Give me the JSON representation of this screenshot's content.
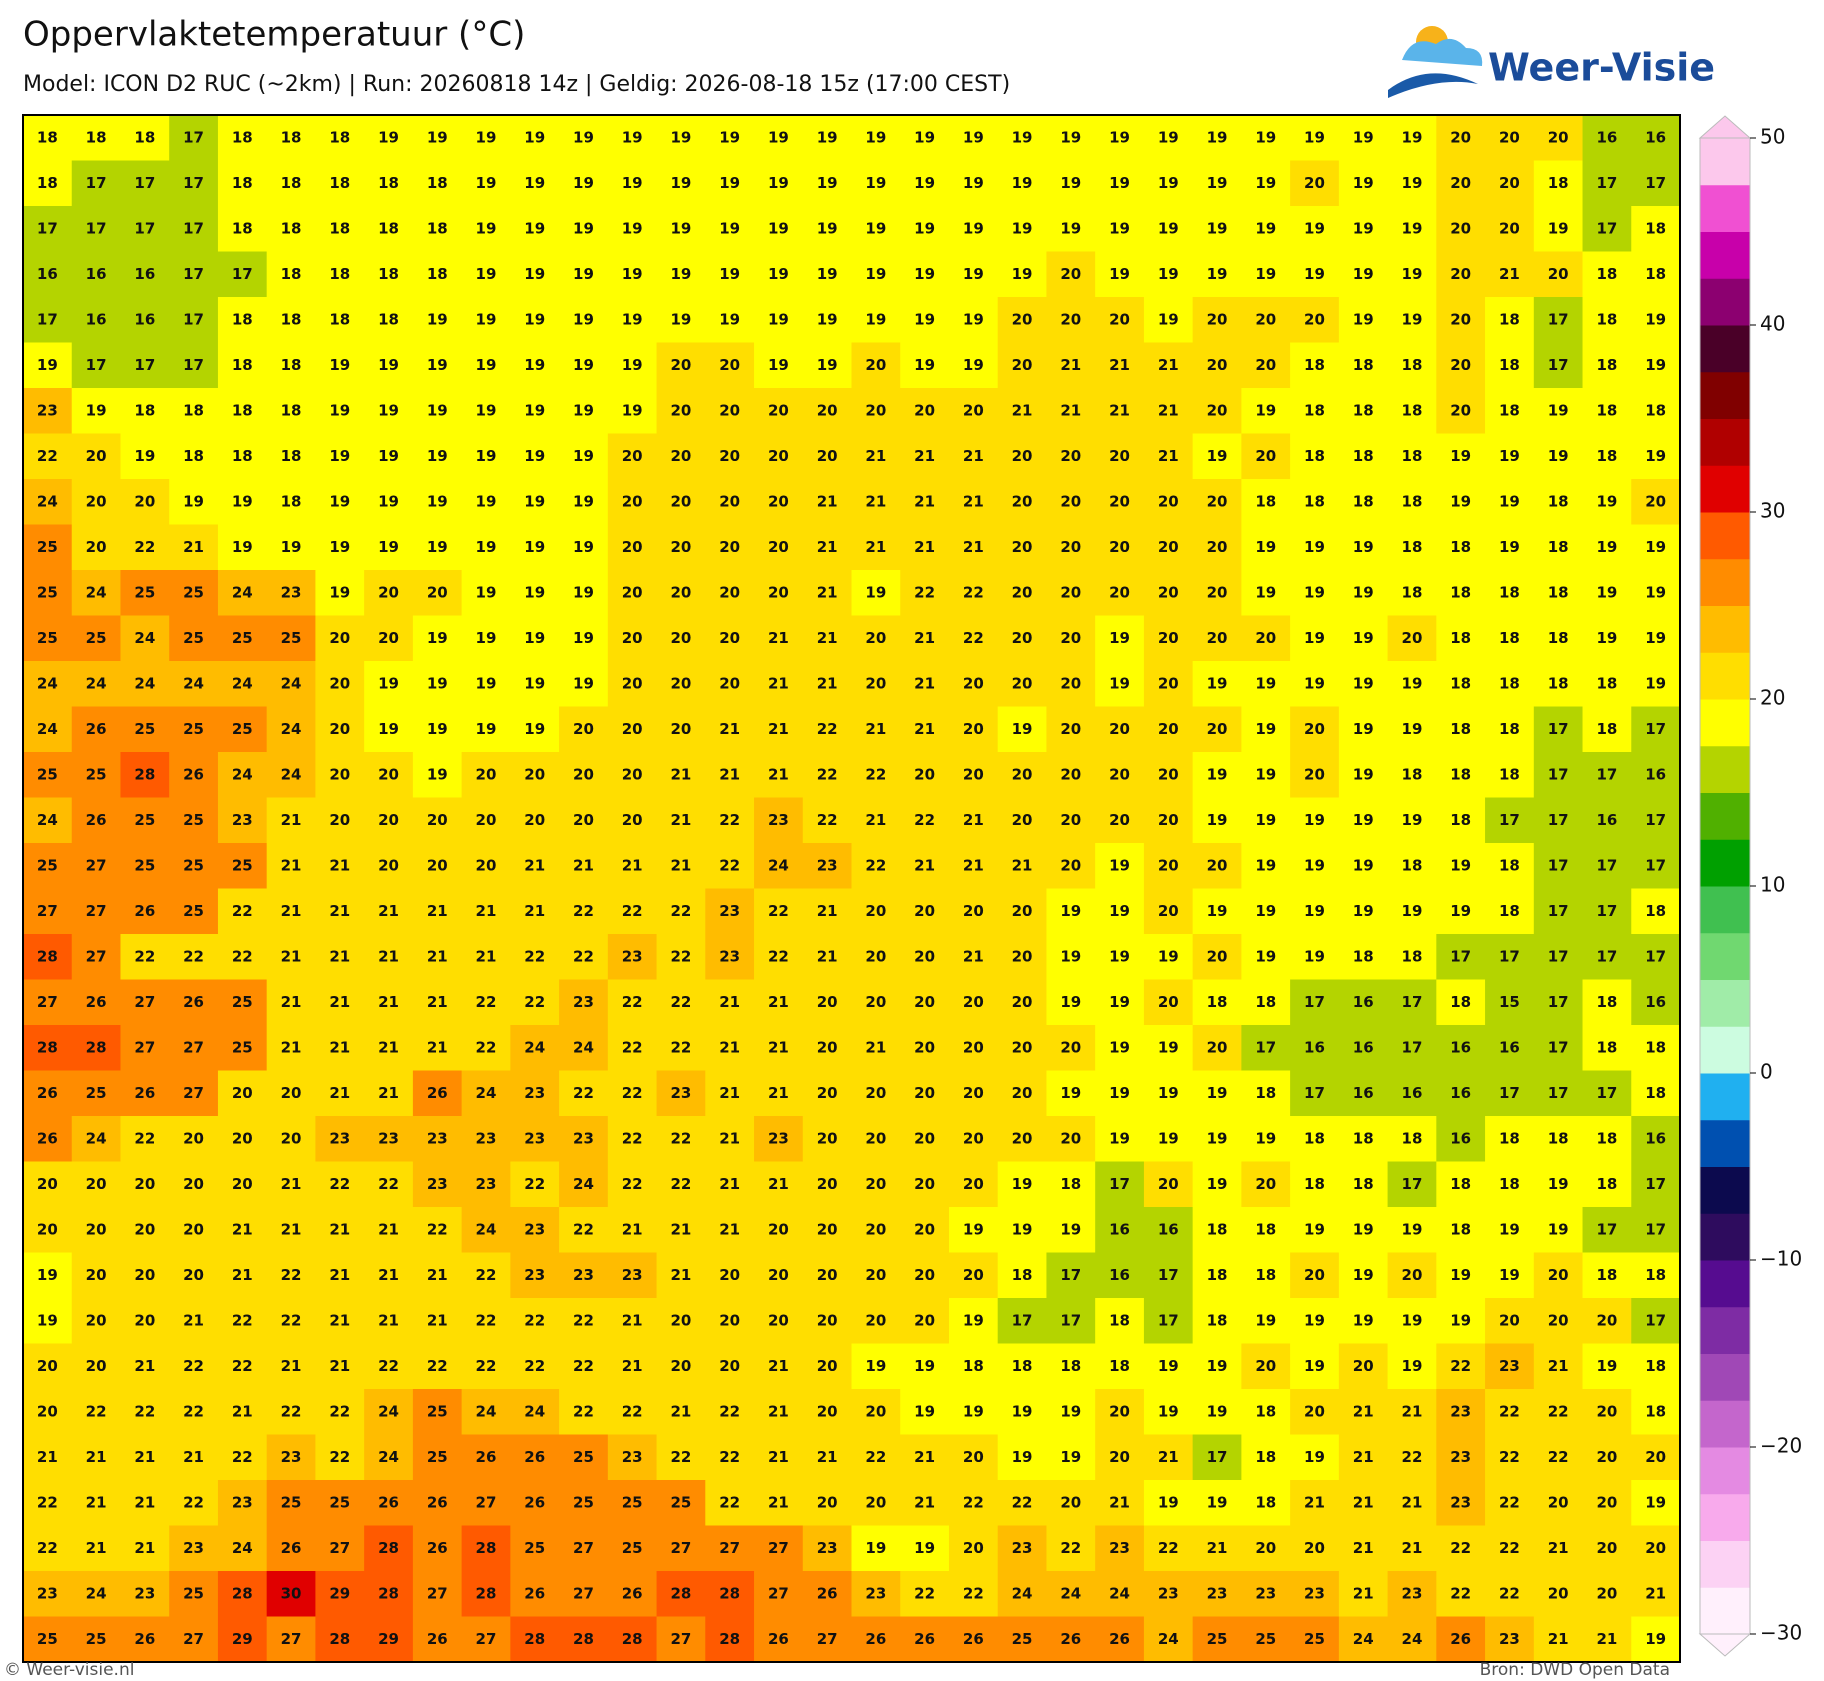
{
  "header": {
    "title": "Oppervlaktetemperatuur (°C)",
    "subtitle": "Model: ICON D2 RUC (~2km)  |  Run: 20260818 14z  |  Geldig: 2026-08-18 15z (17:00 CEST)"
  },
  "logo": {
    "text": "Weer-Visie"
  },
  "grid": {
    "rows": [
      [
        18,
        18,
        18,
        17,
        18,
        18,
        18,
        19,
        19,
        19,
        19,
        19,
        19,
        19,
        19,
        19,
        19,
        19,
        19,
        19,
        19,
        19,
        19,
        19,
        19,
        19,
        19,
        19,
        19,
        20,
        20,
        20,
        16,
        16
      ],
      [
        18,
        17,
        17,
        17,
        18,
        18,
        18,
        18,
        18,
        19,
        19,
        19,
        19,
        19,
        19,
        19,
        19,
        19,
        19,
        19,
        19,
        19,
        19,
        19,
        19,
        19,
        20,
        19,
        19,
        20,
        20,
        18,
        17,
        17
      ],
      [
        17,
        17,
        17,
        17,
        18,
        18,
        18,
        18,
        18,
        19,
        19,
        19,
        19,
        19,
        19,
        19,
        19,
        19,
        19,
        19,
        19,
        19,
        19,
        19,
        19,
        19,
        19,
        19,
        19,
        20,
        20,
        19,
        17,
        18
      ],
      [
        16,
        16,
        16,
        17,
        17,
        18,
        18,
        18,
        18,
        19,
        19,
        19,
        19,
        19,
        19,
        19,
        19,
        19,
        19,
        19,
        19,
        20,
        19,
        19,
        19,
        19,
        19,
        19,
        19,
        20,
        21,
        20,
        18,
        18
      ],
      [
        17,
        16,
        16,
        17,
        18,
        18,
        18,
        18,
        19,
        19,
        19,
        19,
        19,
        19,
        19,
        19,
        19,
        19,
        19,
        19,
        20,
        20,
        20,
        19,
        20,
        20,
        20,
        19,
        19,
        20,
        18,
        17,
        18,
        19
      ],
      [
        19,
        17,
        17,
        17,
        18,
        18,
        19,
        19,
        19,
        19,
        19,
        19,
        19,
        20,
        20,
        19,
        19,
        20,
        19,
        19,
        20,
        21,
        21,
        21,
        20,
        20,
        18,
        18,
        18,
        20,
        18,
        17,
        18,
        19
      ],
      [
        23,
        19,
        18,
        18,
        18,
        18,
        19,
        19,
        19,
        19,
        19,
        19,
        19,
        20,
        20,
        20,
        20,
        20,
        20,
        20,
        21,
        21,
        21,
        21,
        20,
        19,
        18,
        18,
        18,
        20,
        18,
        19,
        18,
        18
      ],
      [
        22,
        20,
        19,
        18,
        18,
        18,
        19,
        19,
        19,
        19,
        19,
        19,
        20,
        20,
        20,
        20,
        20,
        21,
        21,
        21,
        20,
        20,
        20,
        21,
        19,
        20,
        18,
        18,
        18,
        19,
        19,
        19,
        18,
        19
      ],
      [
        24,
        20,
        20,
        19,
        19,
        18,
        19,
        19,
        19,
        19,
        19,
        19,
        20,
        20,
        20,
        20,
        21,
        21,
        21,
        21,
        20,
        20,
        20,
        20,
        20,
        18,
        18,
        18,
        18,
        19,
        19,
        18,
        19,
        20
      ],
      [
        25,
        20,
        22,
        21,
        19,
        19,
        19,
        19,
        19,
        19,
        19,
        19,
        20,
        20,
        20,
        20,
        21,
        21,
        21,
        21,
        20,
        20,
        20,
        20,
        20,
        19,
        19,
        19,
        18,
        18,
        19,
        18,
        19,
        19
      ],
      [
        25,
        24,
        25,
        25,
        24,
        23,
        19,
        20,
        20,
        19,
        19,
        19,
        20,
        20,
        20,
        20,
        21,
        19,
        22,
        22,
        20,
        20,
        20,
        20,
        20,
        19,
        19,
        19,
        18,
        18,
        18,
        18,
        19,
        19
      ],
      [
        25,
        25,
        24,
        25,
        25,
        25,
        20,
        20,
        19,
        19,
        19,
        19,
        20,
        20,
        20,
        21,
        21,
        20,
        21,
        22,
        20,
        20,
        19,
        20,
        20,
        20,
        19,
        19,
        20,
        18,
        18,
        18,
        19,
        19
      ],
      [
        24,
        24,
        24,
        24,
        24,
        24,
        20,
        19,
        19,
        19,
        19,
        19,
        20,
        20,
        20,
        21,
        21,
        20,
        21,
        20,
        20,
        20,
        19,
        20,
        19,
        19,
        19,
        19,
        19,
        18,
        18,
        18,
        18,
        19
      ],
      [
        24,
        26,
        25,
        25,
        25,
        24,
        20,
        19,
        19,
        19,
        19,
        20,
        20,
        20,
        21,
        21,
        22,
        21,
        21,
        20,
        19,
        20,
        20,
        20,
        20,
        19,
        20,
        19,
        19,
        18,
        18,
        17,
        18,
        17
      ],
      [
        25,
        25,
        28,
        26,
        24,
        24,
        20,
        20,
        19,
        20,
        20,
        20,
        20,
        21,
        21,
        21,
        22,
        22,
        20,
        20,
        20,
        20,
        20,
        20,
        19,
        19,
        20,
        19,
        18,
        18,
        18,
        17,
        17,
        16
      ],
      [
        24,
        26,
        25,
        25,
        23,
        21,
        20,
        20,
        20,
        20,
        20,
        20,
        20,
        21,
        22,
        23,
        22,
        21,
        22,
        21,
        20,
        20,
        20,
        20,
        19,
        19,
        19,
        19,
        19,
        18,
        17,
        17,
        16,
        17
      ],
      [
        25,
        27,
        25,
        25,
        25,
        21,
        21,
        20,
        20,
        20,
        21,
        21,
        21,
        21,
        22,
        24,
        23,
        22,
        21,
        21,
        21,
        20,
        19,
        20,
        20,
        19,
        19,
        19,
        18,
        19,
        18,
        17,
        17,
        17
      ],
      [
        27,
        27,
        26,
        25,
        22,
        21,
        21,
        21,
        21,
        21,
        21,
        22,
        22,
        22,
        23,
        22,
        21,
        20,
        20,
        20,
        20,
        19,
        19,
        20,
        19,
        19,
        19,
        19,
        19,
        19,
        18,
        17,
        17,
        18
      ],
      [
        28,
        27,
        22,
        22,
        22,
        21,
        21,
        21,
        21,
        21,
        22,
        22,
        23,
        22,
        23,
        22,
        21,
        20,
        20,
        21,
        20,
        19,
        19,
        19,
        20,
        19,
        19,
        18,
        18,
        17,
        17,
        17,
        17,
        17
      ],
      [
        27,
        26,
        27,
        26,
        25,
        21,
        21,
        21,
        21,
        22,
        22,
        23,
        22,
        22,
        21,
        21,
        20,
        20,
        20,
        20,
        20,
        19,
        19,
        20,
        18,
        18,
        17,
        16,
        17,
        18,
        15,
        17,
        18,
        16
      ],
      [
        28,
        28,
        27,
        27,
        25,
        21,
        21,
        21,
        21,
        22,
        24,
        24,
        22,
        22,
        21,
        21,
        20,
        21,
        20,
        20,
        20,
        20,
        19,
        19,
        20,
        17,
        16,
        16,
        17,
        16,
        16,
        17,
        18,
        18
      ],
      [
        26,
        25,
        26,
        27,
        20,
        20,
        21,
        21,
        26,
        24,
        23,
        22,
        22,
        23,
        21,
        21,
        20,
        20,
        20,
        20,
        20,
        19,
        19,
        19,
        19,
        18,
        17,
        16,
        16,
        16,
        17,
        17,
        17,
        18
      ],
      [
        26,
        24,
        22,
        20,
        20,
        20,
        23,
        23,
        23,
        23,
        23,
        23,
        22,
        22,
        21,
        23,
        20,
        20,
        20,
        20,
        20,
        20,
        19,
        19,
        19,
        19,
        18,
        18,
        18,
        16,
        18,
        18,
        18,
        16
      ],
      [
        20,
        20,
        20,
        20,
        20,
        21,
        22,
        22,
        23,
        23,
        22,
        24,
        22,
        22,
        21,
        21,
        20,
        20,
        20,
        20,
        19,
        18,
        17,
        20,
        19,
        20,
        18,
        18,
        17,
        18,
        18,
        19,
        18,
        17
      ],
      [
        20,
        20,
        20,
        20,
        21,
        21,
        21,
        21,
        22,
        24,
        23,
        22,
        21,
        21,
        21,
        20,
        20,
        20,
        20,
        19,
        19,
        19,
        16,
        16,
        18,
        18,
        19,
        19,
        19,
        18,
        19,
        19,
        17,
        17
      ],
      [
        19,
        20,
        20,
        20,
        21,
        22,
        21,
        21,
        21,
        22,
        23,
        23,
        23,
        21,
        20,
        20,
        20,
        20,
        20,
        20,
        18,
        17,
        16,
        17,
        18,
        18,
        20,
        19,
        20,
        19,
        19,
        20,
        18,
        18
      ],
      [
        19,
        20,
        20,
        21,
        22,
        22,
        21,
        21,
        21,
        22,
        22,
        22,
        21,
        20,
        20,
        20,
        20,
        20,
        20,
        19,
        17,
        17,
        18,
        17,
        18,
        19,
        19,
        19,
        19,
        19,
        20,
        20,
        20,
        17
      ],
      [
        20,
        20,
        21,
        22,
        22,
        21,
        21,
        22,
        22,
        22,
        22,
        22,
        21,
        20,
        20,
        21,
        20,
        19,
        19,
        18,
        18,
        18,
        18,
        19,
        19,
        20,
        19,
        20,
        19,
        22,
        23,
        21,
        19,
        18
      ],
      [
        20,
        22,
        22,
        22,
        21,
        22,
        22,
        24,
        25,
        24,
        24,
        22,
        22,
        21,
        22,
        21,
        20,
        20,
        19,
        19,
        19,
        19,
        20,
        19,
        19,
        18,
        20,
        21,
        21,
        23,
        22,
        22,
        20,
        18
      ],
      [
        21,
        21,
        21,
        21,
        22,
        23,
        22,
        24,
        25,
        26,
        26,
        25,
        23,
        22,
        22,
        21,
        21,
        22,
        21,
        20,
        19,
        19,
        20,
        21,
        17,
        18,
        19,
        21,
        22,
        23,
        22,
        22,
        20,
        20
      ],
      [
        22,
        21,
        21,
        22,
        23,
        25,
        25,
        26,
        26,
        27,
        26,
        25,
        25,
        25,
        22,
        21,
        20,
        20,
        21,
        22,
        22,
        20,
        21,
        19,
        19,
        18,
        21,
        21,
        21,
        23,
        22,
        20,
        20,
        19
      ],
      [
        22,
        21,
        21,
        23,
        24,
        26,
        27,
        28,
        26,
        28,
        25,
        27,
        25,
        27,
        27,
        27,
        23,
        19,
        19,
        20,
        23,
        22,
        23,
        22,
        21,
        20,
        20,
        21,
        21,
        22,
        22,
        21,
        20,
        20
      ],
      [
        23,
        24,
        23,
        25,
        28,
        30,
        29,
        28,
        27,
        28,
        26,
        27,
        26,
        28,
        28,
        27,
        26,
        23,
        22,
        22,
        24,
        24,
        24,
        23,
        23,
        23,
        23,
        21,
        23,
        22,
        22,
        20,
        20,
        21
      ],
      [
        25,
        25,
        26,
        27,
        29,
        27,
        28,
        29,
        26,
        27,
        28,
        28,
        28,
        27,
        28,
        26,
        27,
        26,
        26,
        26,
        25,
        26,
        26,
        24,
        25,
        25,
        25,
        24,
        24,
        26,
        23,
        21,
        21,
        19
      ]
    ]
  },
  "colorbar": {
    "range": [
      -30,
      50
    ],
    "ticks": [
      {
        "value": -30,
        "label": "−30"
      },
      {
        "value": -20,
        "label": "−20"
      },
      {
        "value": -10,
        "label": "−10"
      },
      0,
      10,
      20,
      30,
      40,
      50
    ],
    "colors": [
      "#fff0fc",
      "#fcd2f4",
      "#f8aaec",
      "#e48ae2",
      "#c466cc",
      "#a048b6",
      "#7e2ca4",
      "#560c90",
      "#2e0c5e",
      "#0c0a4e",
      "#0050b0",
      "#20b0f0",
      "#ccfce0",
      "#a0eca8",
      "#70d870",
      "#40c050",
      "#00a000",
      "#50b000",
      "#b4d400",
      "#ffff00",
      "#ffde00",
      "#ffbc00",
      "#ff8c00",
      "#ff5a00",
      "#e00000",
      "#b00000",
      "#800000",
      "#4a0028",
      "#8c0070",
      "#c800aa",
      "#f050d2",
      "#fcc8ec"
    ]
  },
  "footer": {
    "left": "© Weer-visie.nl",
    "right": "Bron: DWD Open Data"
  }
}
